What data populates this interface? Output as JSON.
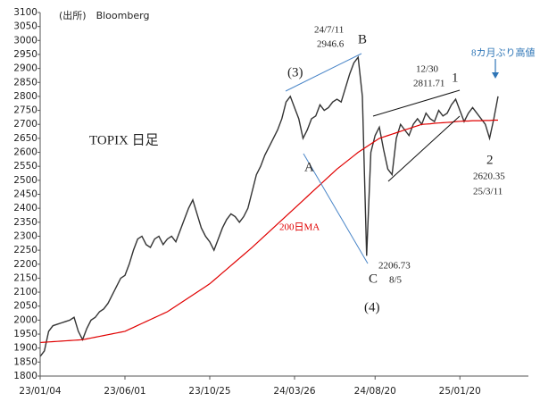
{
  "chart_data": {
    "type": "line",
    "categories": [
      "23/01/04",
      null,
      null,
      null,
      null,
      null,
      null,
      null,
      null,
      null,
      null,
      null,
      null,
      null,
      null,
      null,
      null,
      null,
      null,
      null,
      "23/06/01",
      null,
      null,
      null,
      null,
      null,
      null,
      null,
      null,
      null,
      null,
      null,
      null,
      null,
      null,
      null,
      null,
      null,
      null,
      null,
      "23/10/25",
      null,
      null,
      null,
      null,
      null,
      null,
      null,
      null,
      null,
      null,
      null,
      null,
      null,
      null,
      null,
      null,
      null,
      null,
      null,
      "24/03/26",
      null,
      null,
      null,
      null,
      null,
      null,
      null,
      null,
      null,
      null,
      null,
      null,
      null,
      null,
      null,
      null,
      null,
      null,
      "24/08/20",
      null,
      null,
      null,
      null,
      null,
      null,
      null,
      null,
      null,
      null,
      null,
      null,
      null,
      null,
      null,
      null,
      null,
      null,
      null,
      "25/01/20",
      null,
      null,
      null,
      null,
      null,
      null,
      null,
      null,
      null
    ],
    "series": [
      {
        "name": "TOPIX",
        "color": "#333333",
        "values": [
          1870,
          1890,
          1960,
          1980,
          1985,
          1990,
          1995,
          2000,
          2010,
          1960,
          1930,
          1970,
          2000,
          2010,
          2030,
          2040,
          2060,
          2090,
          2120,
          2150,
          2160,
          2200,
          2250,
          2290,
          2300,
          2270,
          2260,
          2290,
          2300,
          2270,
          2290,
          2300,
          2280,
          2320,
          2360,
          2400,
          2430,
          2380,
          2330,
          2300,
          2280,
          2250,
          2290,
          2330,
          2360,
          2380,
          2370,
          2350,
          2370,
          2400,
          2460,
          2520,
          2550,
          2590,
          2620,
          2650,
          2680,
          2720,
          2780,
          2800,
          2760,
          2720,
          2650,
          2680,
          2720,
          2730,
          2770,
          2750,
          2760,
          2780,
          2790,
          2780,
          2830,
          2880,
          2920,
          2940,
          2800,
          2230,
          2600,
          2660,
          2690,
          2610,
          2540,
          2520,
          2650,
          2700,
          2680,
          2660,
          2700,
          2720,
          2700,
          2740,
          2720,
          2710,
          2750,
          2730,
          2740,
          2770,
          2790,
          2750,
          2710,
          2740,
          2760,
          2740,
          2720,
          2700,
          2650,
          2720,
          2800
        ]
      },
      {
        "name": "200日MA",
        "color": "#e00000",
        "values": [
          1920,
          1921,
          1922,
          1923,
          1924,
          1925,
          1926,
          1927,
          1928,
          1929,
          1930,
          1933,
          1936,
          1939,
          1942,
          1945,
          1948,
          1951,
          1954,
          1957,
          1960,
          1967,
          1974,
          1981,
          1988,
          1995,
          2002,
          2009,
          2016,
          2023,
          2030,
          2040,
          2050,
          2060,
          2070,
          2080,
          2090,
          2100,
          2110,
          2120,
          2130,
          2143,
          2156,
          2169,
          2182,
          2195,
          2208,
          2221,
          2234,
          2247,
          2260,
          2274,
          2288,
          2302,
          2316,
          2330,
          2344,
          2358,
          2372,
          2386,
          2400,
          2414,
          2428,
          2442,
          2456,
          2470,
          2484,
          2498,
          2512,
          2526,
          2540,
          2552,
          2564,
          2576,
          2588,
          2600,
          2610,
          2620,
          2630,
          2640,
          2650,
          2655,
          2660,
          2665,
          2670,
          2675,
          2680,
          2685,
          2690,
          2695,
          2700,
          2701,
          2702,
          2704,
          2705,
          2706,
          2707,
          2708,
          2710,
          2711,
          2712,
          2712,
          2713,
          2713,
          2713,
          2714,
          2714,
          2715,
          2715
        ]
      }
    ],
    "ylim": [
      1800,
      3100
    ],
    "yticks": [
      1800,
      1850,
      1900,
      1950,
      2000,
      2050,
      2100,
      2150,
      2200,
      2250,
      2300,
      2350,
      2400,
      2450,
      2500,
      2550,
      2600,
      2650,
      2700,
      2750,
      2800,
      2850,
      2900,
      2950,
      3000,
      3050,
      3100
    ],
    "grid": false,
    "annotations": [
      "(出所)　Bloomberg",
      "TOPIX 日足",
      "24/7/11",
      "2946.6",
      "B",
      "(3)",
      "12/30",
      "2811.71",
      "1",
      "8カ月ぶり高値",
      "A",
      "200日MA",
      "2206.73",
      "8/5",
      "C",
      "(4)",
      "2",
      "2620.35",
      "25/3/11"
    ]
  }
}
